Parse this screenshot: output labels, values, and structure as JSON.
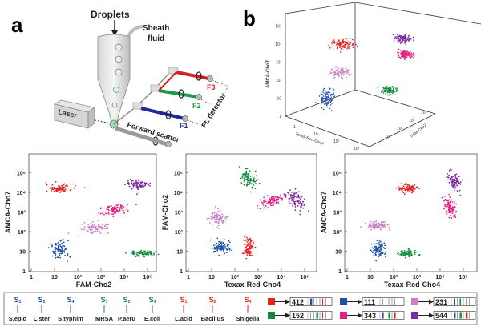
{
  "panel_a": {
    "letter": "a",
    "droplets": "Droplets",
    "sheath_1": "Sheath",
    "sheath_2": "fluid",
    "laser": "Laser",
    "forward_scatter": "Forward scatter",
    "f1": "F1",
    "f2": "F2",
    "f3": "F3",
    "fl_detector": "FL detector"
  },
  "panel_b": {
    "letter": "b"
  },
  "colors": {
    "red": "#e3241e",
    "blue": "#1f4fa6",
    "lightpink": "#c884c2",
    "magenta": "#e1207f",
    "purple": "#7a2c9c",
    "green": "#158a3f"
  },
  "chart_data": [
    {
      "type": "scatter",
      "panel": "b",
      "projection": "3d",
      "xlabel": "Texas-Red-Cho4",
      "ylabel": "FAM-Cho2",
      "zlabel": "AMCA-Cho7",
      "z_ticks": [
        "1",
        "10",
        "10²",
        "10³",
        "10⁴",
        "10⁵"
      ],
      "x_ticks": [
        "1",
        "10",
        "10²",
        "10³"
      ],
      "y_ticks": [
        "10",
        "10²",
        "10³",
        "10⁴"
      ],
      "scale": "log",
      "clusters": [
        {
          "code": "412",
          "color": "red"
        },
        {
          "code": "231",
          "color": "lightpink"
        },
        {
          "code": "111",
          "color": "blue"
        },
        {
          "code": "544",
          "color": "purple"
        },
        {
          "code": "343",
          "color": "magenta"
        },
        {
          "code": "152",
          "color": "green"
        }
      ]
    },
    {
      "type": "scatter",
      "xlabel": "FAM-Cho2",
      "ylabel": "AMCA-Cho7",
      "scale": "log",
      "xlim": [
        1,
        1000000
      ],
      "ylim": [
        1,
        1000000
      ],
      "x_ticks": [
        "1",
        "10",
        "10²",
        "10³",
        "10⁴",
        "10⁵"
      ],
      "y_ticks": [
        "1",
        "10",
        "10²",
        "10³",
        "10⁴",
        "10⁵"
      ],
      "clusters": [
        {
          "color": "red",
          "x": 16,
          "y": 16000
        },
        {
          "color": "blue",
          "x": 16,
          "y": 12
        },
        {
          "color": "lightpink",
          "x": 630,
          "y": 160
        },
        {
          "color": "magenta",
          "x": 4000,
          "y": 1300
        },
        {
          "color": "purple",
          "x": 40000,
          "y": 25000
        },
        {
          "color": "green",
          "x": 63000,
          "y": 8
        }
      ]
    },
    {
      "type": "scatter",
      "xlabel": "Texax-Red-Cho4",
      "ylabel": "FAM-Cho2",
      "scale": "log",
      "xlim": [
        1,
        1000000
      ],
      "ylim": [
        1,
        1000000
      ],
      "x_ticks": [
        "1",
        "10",
        "10²",
        "10³",
        "10⁴",
        "10⁵"
      ],
      "y_ticks": [
        "1",
        "10",
        "10²",
        "10³",
        "10⁴",
        "10⁵"
      ],
      "clusters": [
        {
          "color": "green",
          "x": 400,
          "y": 50000
        },
        {
          "color": "magenta",
          "x": 4000,
          "y": 4000
        },
        {
          "color": "purple",
          "x": 40000,
          "y": 4000
        },
        {
          "color": "lightpink",
          "x": 20,
          "y": 500
        },
        {
          "color": "blue",
          "x": 25,
          "y": 16
        },
        {
          "color": "red",
          "x": 400,
          "y": 16
        }
      ]
    },
    {
      "type": "scatter",
      "xlabel": "Texax-Red-Cho4",
      "ylabel": "AMCA-Cho7",
      "scale": "log",
      "xlim": [
        1,
        1000000
      ],
      "ylim": [
        1,
        1000000
      ],
      "x_ticks": [
        "1",
        "10",
        "10²",
        "10³",
        "10⁴",
        "10⁵"
      ],
      "y_ticks": [
        "1",
        "10",
        "10²",
        "10³",
        "10⁴",
        "10⁵"
      ],
      "clusters": [
        {
          "color": "red",
          "x": 400,
          "y": 16000
        },
        {
          "color": "purple",
          "x": 40000,
          "y": 40000
        },
        {
          "color": "magenta",
          "x": 25000,
          "y": 2000
        },
        {
          "color": "lightpink",
          "x": 20,
          "y": 200
        },
        {
          "color": "blue",
          "x": 25,
          "y": 13
        },
        {
          "color": "green",
          "x": 400,
          "y": 8
        }
      ]
    }
  ],
  "legend": {
    "species": [
      {
        "s": "S",
        "sub": "1",
        "name": "S.epid",
        "color": "blue"
      },
      {
        "s": "S",
        "sub": "2",
        "name": "Lister",
        "color": "blue"
      },
      {
        "s": "S",
        "sub": "4",
        "name": "S.typhim",
        "color": "blue"
      },
      {
        "s": "S",
        "sub": "1",
        "name": "MRSA",
        "color": "green"
      },
      {
        "s": "S",
        "sub": "2",
        "name": "P.aeru",
        "color": "green"
      },
      {
        "s": "S",
        "sub": "4",
        "name": "E.coli",
        "color": "green"
      },
      {
        "s": "S",
        "sub": "1",
        "name": "L.acid",
        "color": "red"
      },
      {
        "s": "S",
        "sub": "2",
        "name": "Bacillus",
        "color": "red"
      },
      {
        "s": "S",
        "sub": "4",
        "name": "Shigella",
        "color": "red"
      }
    ],
    "codes": [
      {
        "color": "red",
        "code": "412"
      },
      {
        "color": "green",
        "code": "152"
      },
      {
        "color": "blue",
        "code": "111"
      },
      {
        "color": "magenta",
        "code": "343"
      },
      {
        "color": "lightpink",
        "code": "231"
      },
      {
        "color": "purple",
        "code": "544"
      }
    ]
  }
}
